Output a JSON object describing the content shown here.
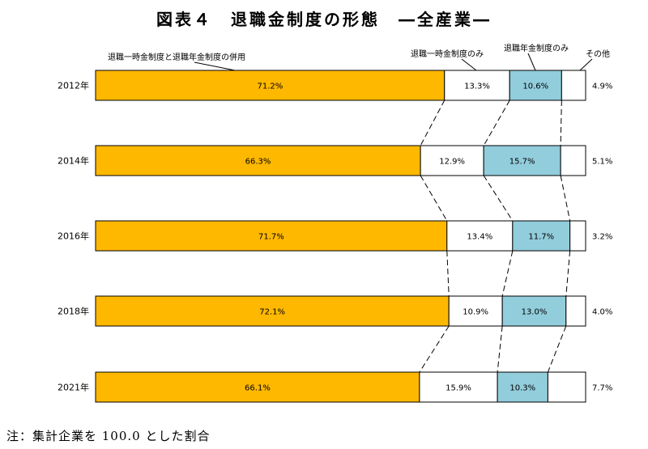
{
  "chart_data": {
    "type": "bar",
    "orientation": "horizontal",
    "stacked": true,
    "percent_stacked": true,
    "title": "図表４　退職金制度の形態　―全産業―",
    "categories": [
      "2012年",
      "2014年",
      "2016年",
      "2018年",
      "2021年"
    ],
    "series": [
      {
        "name": "退職一時金制度と退職年金制度の併用",
        "color": "#FFB800",
        "values": [
          71.2,
          66.3,
          71.7,
          72.1,
          66.1
        ],
        "labels": [
          "71.2%",
          "66.3%",
          "71.7%",
          "72.1%",
          "66.1%"
        ]
      },
      {
        "name": "退職一時金制度のみ",
        "color": "#FFFFFF",
        "values": [
          13.3,
          12.9,
          13.4,
          10.9,
          15.9
        ],
        "labels": [
          "13.3%",
          "12.9%",
          "13.4%",
          "10.9%",
          "15.9%"
        ]
      },
      {
        "name": "退職年金制度のみ",
        "color": "#92CDDC",
        "values": [
          10.6,
          15.7,
          11.7,
          13.0,
          10.3
        ],
        "labels": [
          "10.6%",
          "15.7%",
          "11.7%",
          "13.0%",
          "10.3%"
        ]
      },
      {
        "name": "その他",
        "color": "#FFFFFF",
        "values": [
          4.9,
          5.1,
          3.2,
          4.0,
          7.7
        ],
        "labels": [
          "4.9%",
          "5.1%",
          "3.2%",
          "4.0%",
          "7.7%"
        ]
      }
    ],
    "xlim": [
      0,
      100
    ],
    "grid": false,
    "legend": "top, above first bar",
    "connector_lines": "dashed"
  },
  "note": "注：集計企業を 100.0 とした割合"
}
